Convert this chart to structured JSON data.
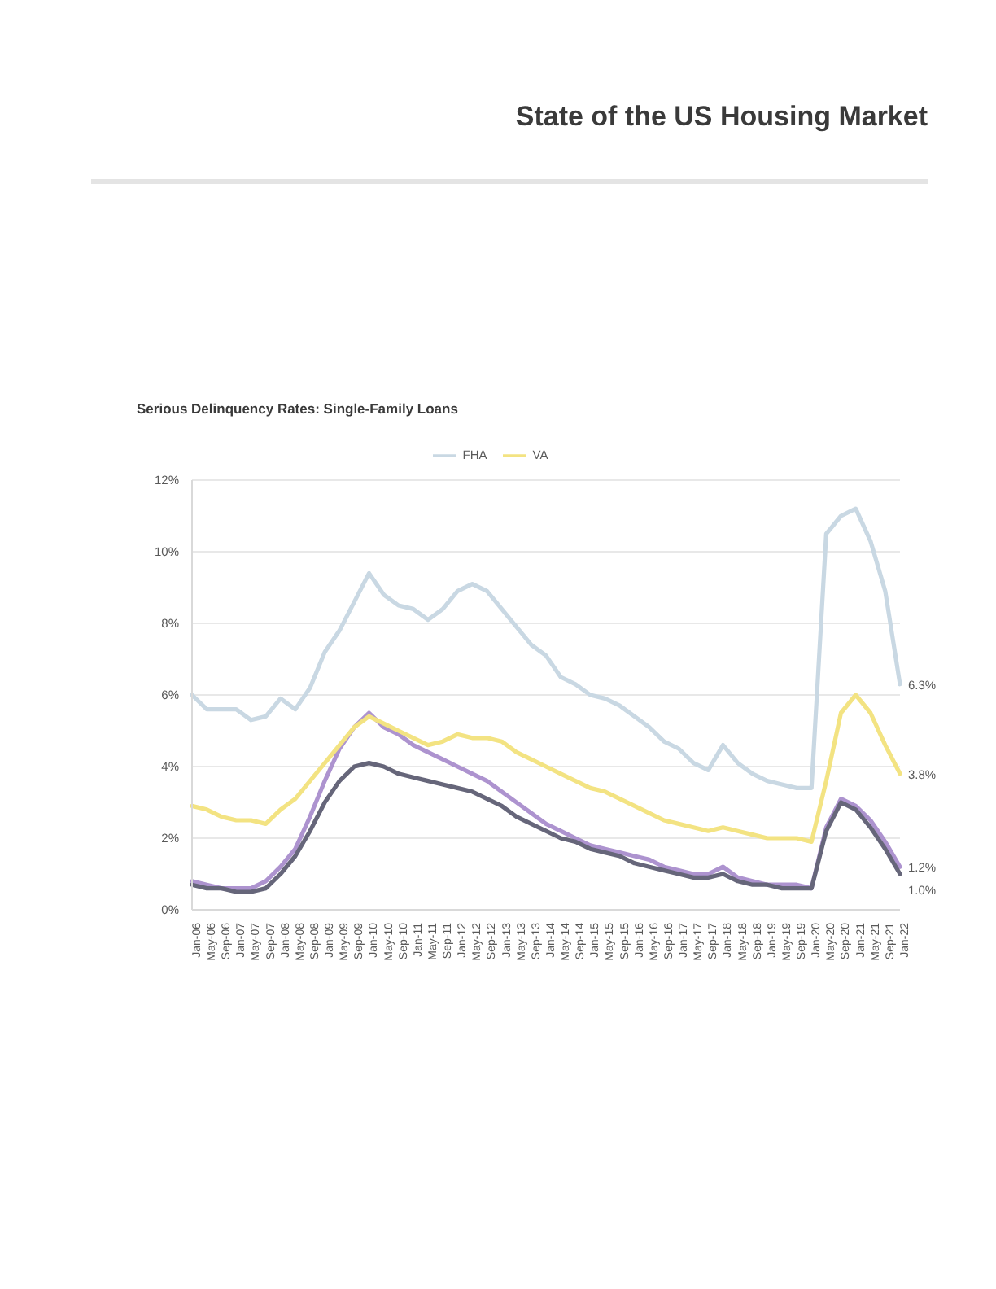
{
  "chart_data": {
    "type": "line",
    "title": "State of the US Housing Market",
    "subtitle": "Serious Delinquency Rates: Single-Family Loans",
    "categories": [
      "Jan-06",
      "May-06",
      "Sep-06",
      "Jan-07",
      "May-07",
      "Sep-07",
      "Jan-08",
      "May-08",
      "Sep-08",
      "Jan-09",
      "May-09",
      "Sep-09",
      "Jan-10",
      "May-10",
      "Sep-10",
      "Jan-11",
      "May-11",
      "Sep-11",
      "Jan-12",
      "May-12",
      "Sep-12",
      "Jan-13",
      "May-13",
      "Sep-13",
      "Jan-14",
      "May-14",
      "Sep-14",
      "Jan-15",
      "May-15",
      "Sep-15",
      "Jan-16",
      "May-16",
      "Sep-16",
      "Jan-17",
      "May-17",
      "Sep-17",
      "Jan-18",
      "May-18",
      "Sep-18",
      "Jan-19",
      "May-19",
      "Sep-19",
      "Jan-20",
      "May-20",
      "Sep-20",
      "Jan-21",
      "May-21",
      "Sep-21",
      "Jan-22"
    ],
    "series": [
      {
        "name": "FHA",
        "color": "#c9d8e3",
        "values": [
          6.0,
          5.6,
          5.6,
          5.6,
          5.3,
          5.4,
          5.9,
          5.6,
          6.2,
          7.2,
          7.8,
          8.6,
          9.4,
          8.8,
          8.5,
          8.4,
          8.1,
          8.4,
          8.9,
          9.1,
          8.9,
          8.4,
          7.9,
          7.4,
          7.1,
          6.5,
          6.3,
          6.0,
          5.9,
          5.7,
          5.4,
          5.1,
          4.7,
          4.5,
          4.1,
          3.9,
          4.6,
          4.1,
          3.8,
          3.6,
          3.5,
          3.4,
          3.4,
          10.5,
          11.0,
          11.2,
          10.3,
          8.9,
          6.3
        ],
        "value_labels": [
          null,
          null,
          null,
          null,
          null,
          null,
          null,
          null,
          null,
          null,
          null,
          null,
          null,
          null,
          null,
          null,
          null,
          null,
          null,
          null,
          null,
          null,
          null,
          null,
          null,
          null,
          null,
          null,
          null,
          null,
          null,
          null,
          null,
          null,
          null,
          null,
          null,
          null,
          null,
          null,
          null,
          null,
          null,
          null,
          null,
          null,
          null,
          null,
          "6.3%"
        ]
      },
      {
        "color": "#ad93cf",
        "values": [
          0.8,
          0.7,
          0.6,
          0.6,
          0.6,
          0.8,
          1.2,
          1.7,
          2.6,
          3.6,
          4.5,
          5.1,
          5.5,
          5.1,
          4.9,
          4.6,
          4.4,
          4.2,
          4.0,
          3.8,
          3.6,
          3.3,
          3.0,
          2.7,
          2.4,
          2.2,
          2.0,
          1.8,
          1.7,
          1.6,
          1.5,
          1.4,
          1.2,
          1.1,
          1.0,
          1.0,
          1.2,
          0.9,
          0.8,
          0.7,
          0.7,
          0.7,
          0.6,
          2.3,
          3.1,
          2.9,
          2.5,
          1.9,
          1.2
        ],
        "value_labels": [
          null,
          null,
          null,
          null,
          null,
          null,
          null,
          null,
          null,
          null,
          null,
          null,
          null,
          null,
          null,
          null,
          null,
          null,
          null,
          null,
          null,
          null,
          null,
          null,
          null,
          null,
          null,
          null,
          null,
          null,
          null,
          null,
          null,
          null,
          null,
          null,
          null,
          null,
          null,
          null,
          null,
          null,
          null,
          null,
          null,
          null,
          null,
          null,
          "1.2%"
        ]
      },
      {
        "color": "#66667a",
        "values": [
          0.7,
          0.6,
          0.6,
          0.5,
          0.5,
          0.6,
          1.0,
          1.5,
          2.2,
          3.0,
          3.6,
          4.0,
          4.1,
          4.0,
          3.8,
          3.7,
          3.6,
          3.5,
          3.4,
          3.3,
          3.1,
          2.9,
          2.6,
          2.4,
          2.2,
          2.0,
          1.9,
          1.7,
          1.6,
          1.5,
          1.3,
          1.2,
          1.1,
          1.0,
          0.9,
          0.9,
          1.0,
          0.8,
          0.7,
          0.7,
          0.6,
          0.6,
          0.6,
          2.2,
          3.0,
          2.8,
          2.3,
          1.7,
          1.0
        ],
        "value_labels": [
          null,
          null,
          null,
          null,
          null,
          null,
          null,
          null,
          null,
          null,
          null,
          null,
          null,
          null,
          null,
          null,
          null,
          null,
          null,
          null,
          null,
          null,
          null,
          null,
          null,
          null,
          null,
          null,
          null,
          null,
          null,
          null,
          null,
          null,
          null,
          null,
          null,
          null,
          null,
          null,
          null,
          null,
          null,
          null,
          null,
          null,
          null,
          null,
          "1.0%"
        ]
      },
      {
        "name": "VA",
        "color": "#f3e382",
        "values": [
          2.9,
          2.8,
          2.6,
          2.5,
          2.5,
          2.4,
          2.8,
          3.1,
          3.6,
          4.1,
          4.6,
          5.1,
          5.4,
          5.2,
          5.0,
          4.8,
          4.6,
          4.7,
          4.9,
          4.8,
          4.8,
          4.7,
          4.4,
          4.2,
          4.0,
          3.8,
          3.6,
          3.4,
          3.3,
          3.1,
          2.9,
          2.7,
          2.5,
          2.4,
          2.3,
          2.2,
          2.3,
          2.2,
          2.1,
          2.0,
          2.0,
          2.0,
          1.9,
          3.6,
          5.5,
          6.0,
          5.5,
          4.6,
          3.8
        ],
        "value_labels": [
          null,
          null,
          null,
          null,
          null,
          null,
          null,
          null,
          null,
          null,
          null,
          null,
          null,
          null,
          null,
          null,
          null,
          null,
          null,
          null,
          null,
          null,
          null,
          null,
          null,
          null,
          null,
          null,
          null,
          null,
          null,
          null,
          null,
          null,
          null,
          null,
          null,
          null,
          null,
          null,
          null,
          null,
          null,
          null,
          null,
          null,
          null,
          null,
          "3.8%"
        ]
      }
    ],
    "ylim": [
      0,
      12
    ],
    "yticks": [
      {
        "value": 0,
        "label": "0%"
      },
      {
        "value": 2,
        "label": "2%"
      },
      {
        "value": 4,
        "label": "4%"
      },
      {
        "value": 6,
        "label": "6%"
      },
      {
        "value": 8,
        "label": "8%"
      },
      {
        "value": 10,
        "label": "10%"
      },
      {
        "value": 12,
        "label": "12%"
      }
    ],
    "grid": "y",
    "legend": "top"
  }
}
